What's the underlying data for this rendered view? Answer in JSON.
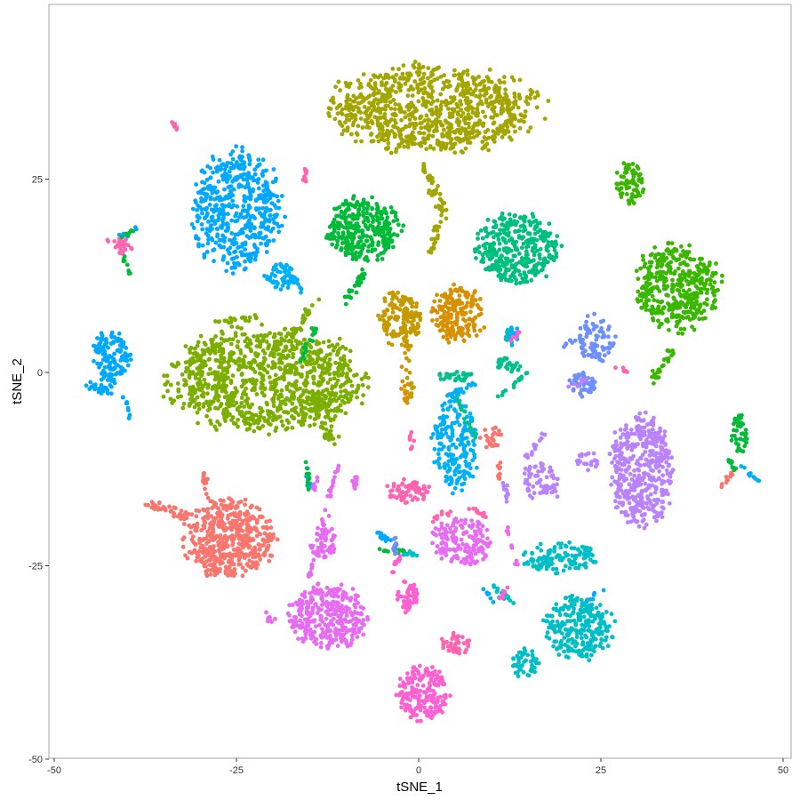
{
  "chart_data": {
    "type": "scatter",
    "title": "",
    "xlabel": "tSNE_1",
    "ylabel": "tSNE_2",
    "xlim": [
      -50,
      50
    ],
    "ylim": [
      -50,
      50
    ],
    "x_ticks": [
      -50,
      -25,
      0,
      25,
      50
    ],
    "y_ticks": [
      -50,
      -25,
      0,
      25
    ],
    "x_tick_labels": [
      "-50",
      "-25",
      "0",
      "25",
      "50"
    ],
    "y_tick_labels": [
      "-50",
      "-25",
      "0",
      "25"
    ],
    "grid": false,
    "legend": "none",
    "panel_border_color": "#a6a6a6",
    "clusters": [
      {
        "color": "#A3A500",
        "shape": "ellipse",
        "center": [
          2,
          34
        ],
        "spread": [
          14,
          5.5
        ],
        "n": 900
      },
      {
        "color": "#00A9FF",
        "shape": "ellipse",
        "center": [
          -25,
          21
        ],
        "spread": [
          6,
          7.5
        ],
        "n": 520
      },
      {
        "color": "#00A9FF",
        "shape": "ellipse",
        "center": [
          -42,
          2
        ],
        "spread": [
          2.5,
          3.5
        ],
        "n": 130
      },
      {
        "color": "#00BA38",
        "shape": "ellipse",
        "center": [
          -7.5,
          18.5
        ],
        "spread": [
          5,
          4
        ],
        "n": 320
      },
      {
        "color": "#00BF7D",
        "shape": "ellipse",
        "center": [
          13.5,
          16
        ],
        "spread": [
          5.5,
          4.5
        ],
        "n": 360
      },
      {
        "color": "#00B0F6",
        "shape": "ellipse",
        "center": [
          -19,
          12.5
        ],
        "spread": [
          2.2,
          1.6
        ],
        "n": 50
      },
      {
        "color": "#7CAE00",
        "shape": "ellipse",
        "center": [
          -21,
          -1
        ],
        "spread": [
          13,
          6.5
        ],
        "n": 1000
      },
      {
        "color": "#C49A00",
        "shape": "ellipse",
        "center": [
          -2.5,
          7
        ],
        "spread": [
          2.8,
          3.5
        ],
        "n": 140
      },
      {
        "color": "#D89000",
        "shape": "ellipse",
        "center": [
          5.5,
          7.5
        ],
        "spread": [
          3.5,
          3.5
        ],
        "n": 180
      },
      {
        "color": "#39B600",
        "shape": "ellipse",
        "center": [
          29,
          24.5
        ],
        "spread": [
          1.8,
          2.8
        ],
        "n": 70
      },
      {
        "color": "#39B600",
        "shape": "ellipse",
        "center": [
          35.5,
          11
        ],
        "spread": [
          5.5,
          5.5
        ],
        "n": 400
      },
      {
        "color": "#6E8FFF",
        "shape": "ellipse",
        "center": [
          24.5,
          4.5
        ],
        "spread": [
          2.5,
          3
        ],
        "n": 80
      },
      {
        "color": "#00B0F6",
        "shape": "ellipse",
        "center": [
          5,
          -9
        ],
        "spread": [
          3,
          6
        ],
        "n": 200
      },
      {
        "color": "#B983FF",
        "shape": "ellipse",
        "center": [
          30.5,
          -12.5
        ],
        "spread": [
          4.2,
          7
        ],
        "n": 420
      },
      {
        "color": "#F8766D",
        "shape": "ellipse",
        "center": [
          -26,
          -21.5
        ],
        "spread": [
          6,
          4.8
        ],
        "n": 500
      },
      {
        "color": "#E76BF3",
        "shape": "ellipse",
        "center": [
          -12.5,
          -31.5
        ],
        "spread": [
          5.5,
          4
        ],
        "n": 330
      },
      {
        "color": "#FD61D1",
        "shape": "ellipse",
        "center": [
          0.5,
          -41.5
        ],
        "spread": [
          3.5,
          3.5
        ],
        "n": 190
      },
      {
        "color": "#FD61D1",
        "shape": "ellipse",
        "center": [
          -1.5,
          -29
        ],
        "spread": [
          1.5,
          2
        ],
        "n": 50
      },
      {
        "color": "#00BFC4",
        "shape": "ellipse",
        "center": [
          22,
          -33
        ],
        "spread": [
          4.5,
          4
        ],
        "n": 260
      },
      {
        "color": "#00BFC4",
        "shape": "ellipse",
        "center": [
          19.5,
          -24
        ],
        "spread": [
          5,
          2
        ],
        "n": 130
      },
      {
        "color": "#00BFC4",
        "shape": "ellipse",
        "center": [
          14.5,
          -37.5
        ],
        "spread": [
          2,
          1.8
        ],
        "n": 50
      },
      {
        "color": "#E76BF3",
        "shape": "ellipse",
        "center": [
          6,
          -22
        ],
        "spread": [
          4,
          3
        ],
        "n": 160
      },
      {
        "color": "#FF64B0",
        "shape": "ellipse",
        "center": [
          -1.5,
          -15.5
        ],
        "spread": [
          3,
          1.5
        ],
        "n": 70
      },
      {
        "color": "#FF64B0",
        "shape": "ellipse",
        "center": [
          5,
          -35
        ],
        "spread": [
          2,
          1.5
        ],
        "n": 40
      },
      {
        "color": "#E76BF3",
        "shape": "ellipse",
        "center": [
          -13,
          -22
        ],
        "spread": [
          1.8,
          2
        ],
        "n": 50
      },
      {
        "color": "#B983FF",
        "shape": "ellipse",
        "center": [
          16.5,
          -14
        ],
        "spread": [
          2.5,
          2.5
        ],
        "n": 60
      },
      {
        "color": "#B983FF",
        "shape": "ellipse",
        "center": [
          23,
          -11.5
        ],
        "spread": [
          1.5,
          1.2
        ],
        "n": 20
      },
      {
        "color": "#00BA38",
        "shape": "ellipse",
        "center": [
          44,
          -8
        ],
        "spread": [
          1.2,
          2.5
        ],
        "n": 40
      },
      {
        "color": "#6E8FFF",
        "shape": "ellipse",
        "center": [
          22.5,
          -1.5
        ],
        "spread": [
          1.8,
          1.5
        ],
        "n": 40
      },
      {
        "color": "#00C08B",
        "shape": "ellipse",
        "center": [
          12.5,
          1
        ],
        "spread": [
          2.2,
          0.9
        ],
        "n": 30
      },
      {
        "color": "#00C08B",
        "shape": "ellipse",
        "center": [
          5,
          -0.5
        ],
        "spread": [
          2.5,
          0.6
        ],
        "n": 30
      },
      {
        "color": "#00B0F6",
        "shape": "ellipse",
        "center": [
          13,
          4.5
        ],
        "spread": [
          1.2,
          1.2
        ],
        "n": 20
      },
      {
        "color": "#F8766D",
        "shape": "ellipse",
        "center": [
          10,
          -8.5
        ],
        "spread": [
          1.5,
          1.5
        ],
        "n": 25
      },
      {
        "color": "#FF64B0",
        "shape": "ellipse",
        "center": [
          -40.5,
          16
        ],
        "spread": [
          1.2,
          0.9
        ],
        "n": 20
      },
      {
        "color": "#A3A500",
        "shape": "line",
        "from": [
          0.8,
          27
        ],
        "to": [
          3.5,
          20
        ],
        "width": 0.7,
        "n": 40
      },
      {
        "color": "#A3A500",
        "shape": "line",
        "from": [
          3,
          20
        ],
        "to": [
          1.5,
          15
        ],
        "width": 0.5,
        "n": 20
      },
      {
        "color": "#C49A00",
        "shape": "line",
        "from": [
          -2,
          10
        ],
        "to": [
          -1,
          -3
        ],
        "width": 0.5,
        "n": 30
      },
      {
        "color": "#D89000",
        "shape": "line",
        "from": [
          -3,
          3
        ],
        "to": [
          -1.5,
          -4
        ],
        "width": 0.5,
        "n": 15
      },
      {
        "color": "#00BA38",
        "shape": "line",
        "from": [
          -10,
          9
        ],
        "to": [
          -7.5,
          13
        ],
        "width": 0.6,
        "n": 30
      },
      {
        "color": "#00BA38",
        "shape": "line",
        "from": [
          -14,
          6
        ],
        "to": [
          -16.5,
          1
        ],
        "width": 0.5,
        "n": 20
      },
      {
        "color": "#7CAE00",
        "shape": "line",
        "from": [
          -14,
          -2
        ],
        "to": [
          -12,
          -9
        ],
        "width": 1.2,
        "n": 60
      },
      {
        "color": "#7CAE00",
        "shape": "line",
        "from": [
          -18,
          4
        ],
        "to": [
          -14,
          9
        ],
        "width": 0.6,
        "n": 30
      },
      {
        "color": "#7CAE00",
        "shape": "line",
        "from": [
          -28,
          6.5
        ],
        "to": [
          -22,
          7
        ],
        "width": 0.4,
        "n": 20
      },
      {
        "color": "#00A9FF",
        "shape": "line",
        "from": [
          -45,
          -1.5
        ],
        "to": [
          -42.5,
          -2.5
        ],
        "width": 0.6,
        "n": 30
      },
      {
        "color": "#00A9FF",
        "shape": "line",
        "from": [
          -40.5,
          -3
        ],
        "to": [
          -39.5,
          -6
        ],
        "width": 0.3,
        "n": 10
      },
      {
        "color": "#F8766D",
        "shape": "line",
        "from": [
          -37,
          -17
        ],
        "to": [
          -31,
          -19
        ],
        "width": 0.8,
        "n": 40
      },
      {
        "color": "#F8766D",
        "shape": "line",
        "from": [
          -29.5,
          -12.5
        ],
        "to": [
          -29,
          -16
        ],
        "width": 0.4,
        "n": 15
      },
      {
        "color": "#E76BF3",
        "shape": "line",
        "from": [
          -21,
          -31
        ],
        "to": [
          -20,
          -32.5
        ],
        "width": 0.4,
        "n": 10
      },
      {
        "color": "#E76BF3",
        "shape": "line",
        "from": [
          -15,
          -26.5
        ],
        "to": [
          -11,
          -12
        ],
        "width": 0.4,
        "n": 40
      },
      {
        "color": "#E76BF3",
        "shape": "line",
        "from": [
          -9,
          -15
        ],
        "to": [
          -8,
          -13
        ],
        "width": 0.4,
        "n": 10
      },
      {
        "color": "#E76BF3",
        "shape": "line",
        "from": [
          -14,
          -13.5
        ],
        "to": [
          -14.5,
          -15
        ],
        "width": 0.4,
        "n": 8
      },
      {
        "color": "#00A9FF",
        "shape": "line",
        "from": [
          -15.5,
          -11.5
        ],
        "to": [
          -15,
          -15
        ],
        "width": 0.3,
        "n": 10
      },
      {
        "color": "#00BA38",
        "shape": "line",
        "from": [
          -15.5,
          -11.5
        ],
        "to": [
          -15,
          -15
        ],
        "width": 0.3,
        "n": 10
      },
      {
        "color": "#00BA38",
        "shape": "line",
        "from": [
          -6,
          -23
        ],
        "to": [
          -2,
          -23
        ],
        "width": 0.3,
        "n": 15
      },
      {
        "color": "#00A9FF",
        "shape": "line",
        "from": [
          -6,
          -20.5
        ],
        "to": [
          -3,
          -22.5
        ],
        "width": 0.3,
        "n": 15
      },
      {
        "color": "#00BFC4",
        "shape": "line",
        "from": [
          -2,
          -23.5
        ],
        "to": [
          0,
          -23.5
        ],
        "width": 0.3,
        "n": 10
      },
      {
        "color": "#6E8FFF",
        "shape": "line",
        "from": [
          -3,
          -21
        ],
        "to": [
          -3.5,
          -25
        ],
        "width": 0.3,
        "n": 12
      },
      {
        "color": "#FD61D1",
        "shape": "line",
        "from": [
          -2.5,
          -23.5
        ],
        "to": [
          -3.5,
          -26
        ],
        "width": 0.3,
        "n": 10
      },
      {
        "color": "#00B0F6",
        "shape": "line",
        "from": [
          8,
          -1
        ],
        "to": [
          4,
          -3.5
        ],
        "width": 0.6,
        "n": 20
      },
      {
        "color": "#FF64B0",
        "shape": "line",
        "from": [
          5,
          -18
        ],
        "to": [
          2,
          -19
        ],
        "width": 0.4,
        "n": 10
      },
      {
        "color": "#FF64B0",
        "shape": "line",
        "from": [
          10,
          -19
        ],
        "to": [
          7,
          -17.5
        ],
        "width": 0.3,
        "n": 10
      },
      {
        "color": "#E76BF3",
        "shape": "line",
        "from": [
          12,
          -20
        ],
        "to": [
          13.5,
          -25
        ],
        "width": 0.3,
        "n": 10
      },
      {
        "color": "#00C08B",
        "shape": "line",
        "from": [
          5,
          -3
        ],
        "to": [
          8,
          -9
        ],
        "width": 0.3,
        "n": 15
      },
      {
        "color": "#00C08B",
        "shape": "line",
        "from": [
          11,
          -3
        ],
        "to": [
          15,
          0
        ],
        "width": 0.4,
        "n": 15
      },
      {
        "color": "#F8766D",
        "shape": "line",
        "from": [
          11,
          -12
        ],
        "to": [
          11,
          -14
        ],
        "width": 0.5,
        "n": 10
      },
      {
        "color": "#B983FF",
        "shape": "line",
        "from": [
          12,
          -14
        ],
        "to": [
          12,
          -17
        ],
        "width": 0.4,
        "n": 10
      },
      {
        "color": "#B983FF",
        "shape": "line",
        "from": [
          15,
          -11
        ],
        "to": [
          18,
          -7
        ],
        "width": 0.5,
        "n": 15
      },
      {
        "color": "#B983FF",
        "shape": "line",
        "from": [
          17,
          -15
        ],
        "to": [
          19,
          -16
        ],
        "width": 0.4,
        "n": 8
      },
      {
        "color": "#B983FF",
        "shape": "line",
        "from": [
          20,
          -2
        ],
        "to": [
          23,
          -1
        ],
        "width": 0.3,
        "n": 8
      },
      {
        "color": "#00BFC4",
        "shape": "line",
        "from": [
          12,
          5.5
        ],
        "to": [
          12,
          3
        ],
        "width": 0.4,
        "n": 8
      },
      {
        "color": "#FD61D1",
        "shape": "line",
        "from": [
          12.5,
          4
        ],
        "to": [
          14,
          5.5
        ],
        "width": 0.3,
        "n": 6
      },
      {
        "color": "#6E8FFF",
        "shape": "line",
        "from": [
          20,
          3.5
        ],
        "to": [
          22,
          4.5
        ],
        "width": 0.3,
        "n": 8
      },
      {
        "color": "#00BFC4",
        "shape": "line",
        "from": [
          10,
          -27.5
        ],
        "to": [
          13,
          -30
        ],
        "width": 0.5,
        "n": 15
      },
      {
        "color": "#FD61D1",
        "shape": "line",
        "from": [
          12,
          -27.5
        ],
        "to": [
          11,
          -30
        ],
        "width": 0.3,
        "n": 8
      },
      {
        "color": "#00A9FF",
        "shape": "line",
        "from": [
          9,
          -28
        ],
        "to": [
          10.5,
          -30
        ],
        "width": 0.3,
        "n": 6
      },
      {
        "color": "#00BA38",
        "shape": "line",
        "from": [
          42,
          -10
        ],
        "to": [
          43.5,
          -13
        ],
        "width": 0.3,
        "n": 10
      },
      {
        "color": "#00B0F6",
        "shape": "line",
        "from": [
          44,
          -12
        ],
        "to": [
          46.5,
          -14
        ],
        "width": 0.3,
        "n": 10
      },
      {
        "color": "#F8766D",
        "shape": "line",
        "from": [
          41.5,
          -15
        ],
        "to": [
          43,
          -13
        ],
        "width": 0.4,
        "n": 10
      },
      {
        "color": "#39B600",
        "shape": "line",
        "from": [
          35,
          3
        ],
        "to": [
          32,
          -1
        ],
        "width": 0.6,
        "n": 25
      },
      {
        "color": "#FF64B0",
        "shape": "line",
        "from": [
          27,
          0.5
        ],
        "to": [
          29,
          0
        ],
        "width": 0.3,
        "n": 6
      },
      {
        "color": "#00A9FF",
        "shape": "line",
        "from": [
          -41,
          17.5
        ],
        "to": [
          -38.5,
          18.5
        ],
        "width": 0.4,
        "n": 10
      },
      {
        "color": "#FF64B0",
        "shape": "line",
        "from": [
          -43,
          17
        ],
        "to": [
          -40,
          17
        ],
        "width": 0.4,
        "n": 10
      },
      {
        "color": "#00BA38",
        "shape": "line",
        "from": [
          -40.5,
          15
        ],
        "to": [
          -39.5,
          12
        ],
        "width": 0.3,
        "n": 8
      },
      {
        "color": "#00BA38",
        "shape": "line",
        "from": [
          -41,
          17.5
        ],
        "to": [
          -38.5,
          18.5
        ],
        "width": 0.2,
        "n": 6
      },
      {
        "color": "#FF64B0",
        "shape": "line",
        "from": [
          -34,
          32.5
        ],
        "to": [
          -33,
          31.5
        ],
        "width": 0.2,
        "n": 6
      },
      {
        "color": "#FF64B0",
        "shape": "line",
        "from": [
          -15.5,
          26.5
        ],
        "to": [
          -15.5,
          25
        ],
        "width": 0.3,
        "n": 8
      },
      {
        "color": "#FF64B0",
        "shape": "line",
        "from": [
          -1,
          -10
        ],
        "to": [
          -1,
          -7.5
        ],
        "width": 0.4,
        "n": 8
      },
      {
        "color": "#00B0F6",
        "shape": "line",
        "from": [
          -18.5,
          13
        ],
        "to": [
          -16,
          10.5
        ],
        "width": 0.6,
        "n": 20
      },
      {
        "color": "#00B0F6",
        "shape": "line",
        "from": [
          22,
          -30
        ],
        "to": [
          26,
          -28
        ],
        "width": 0.3,
        "n": 6
      }
    ]
  }
}
